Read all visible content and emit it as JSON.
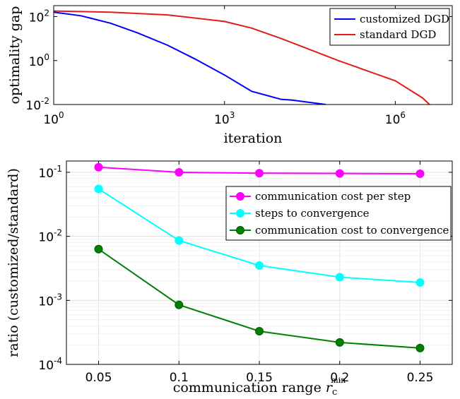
{
  "chart_data": [
    {
      "type": "line",
      "title": "",
      "xlabel": "iteration",
      "ylabel": "optimality gap",
      "xscale": "log",
      "yscale": "log",
      "xlim": [
        1,
        10000000
      ],
      "ylim": [
        0.01,
        316
      ],
      "xticks": [
        1,
        1000,
        1000000
      ],
      "xtick_labels": [
        {
          "base": "10",
          "exp": "0"
        },
        {
          "base": "10",
          "exp": "3"
        },
        {
          "base": "10",
          "exp": "6"
        }
      ],
      "yticks": [
        0.01,
        1,
        100
      ],
      "ytick_labels": [
        {
          "base": "10",
          "exp": "-2"
        },
        {
          "base": "10",
          "exp": "0"
        },
        {
          "base": "10",
          "exp": "2"
        }
      ],
      "grid": false,
      "legend_position": "top-right",
      "series": [
        {
          "name": "customized DGD",
          "color": "#0000ff",
          "x": [
            1,
            3,
            10,
            30,
            100,
            300,
            1000,
            3000,
            10000,
            15000,
            60000
          ],
          "y": [
            160,
            110,
            50,
            18,
            5,
            1.2,
            0.22,
            0.04,
            0.017,
            0.016,
            0.01
          ]
        },
        {
          "name": "standard DGD",
          "color": "#e41a1c",
          "x": [
            1,
            10,
            100,
            1000,
            3000,
            10000,
            100000,
            1000000,
            3000000,
            4000000
          ],
          "y": [
            180,
            160,
            120,
            60,
            30,
            10,
            1,
            0.12,
            0.02,
            0.01
          ]
        }
      ]
    },
    {
      "type": "line",
      "title": "",
      "xlabel": "communication range",
      "xlabel_math": {
        "symbol": "r",
        "sub": "c",
        "sup": "min"
      },
      "ylabel": "ratio (customized/standard)",
      "yscale": "log",
      "xlim": [
        0.03,
        0.27
      ],
      "ylim": [
        0.0001,
        0.15
      ],
      "xticks": [
        0.05,
        0.1,
        0.15,
        0.2,
        0.25
      ],
      "xtick_labels": [
        "0.05",
        "0.1",
        "0.15",
        "0.2",
        "0.25"
      ],
      "yticks": [
        0.0001,
        0.001,
        0.01,
        0.1
      ],
      "ytick_labels": [
        {
          "base": "10",
          "exp": "-4"
        },
        {
          "base": "10",
          "exp": "-3"
        },
        {
          "base": "10",
          "exp": "-2"
        },
        {
          "base": "10",
          "exp": "-1"
        }
      ],
      "grid": true,
      "legend_position": "upper-right",
      "series": [
        {
          "name": "communication cost per step",
          "color": "#ff00ff",
          "x": [
            0.05,
            0.1,
            0.15,
            0.2,
            0.25
          ],
          "y": [
            0.12,
            0.1,
            0.097,
            0.096,
            0.095
          ]
        },
        {
          "name": "steps to convergence",
          "color": "#00ffff",
          "x": [
            0.05,
            0.1,
            0.15,
            0.2,
            0.25
          ],
          "y": [
            0.055,
            0.0086,
            0.0035,
            0.0023,
            0.0019
          ]
        },
        {
          "name": "communication cost to convergence",
          "color": "#008000",
          "x": [
            0.05,
            0.1,
            0.15,
            0.2,
            0.25
          ],
          "y": [
            0.0063,
            0.00085,
            0.00033,
            0.00022,
            0.00018
          ]
        }
      ]
    }
  ]
}
